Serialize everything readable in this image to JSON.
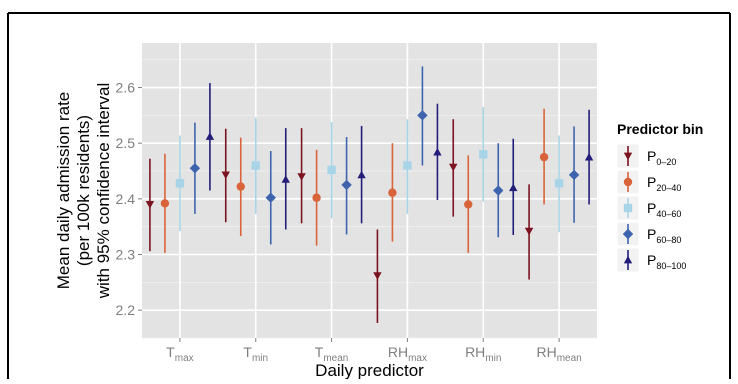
{
  "chart_data": {
    "type": "scatter",
    "xlabel": "Daily predictor",
    "ylabel_lines": [
      "Mean daily admission rate",
      "(per 100k residents)",
      "with 95% confidence interval"
    ],
    "ylim": [
      2.15,
      2.68
    ],
    "yticks": [
      2.2,
      2.3,
      2.4,
      2.5,
      2.6
    ],
    "grid": true,
    "legend_position": "right",
    "categories": [
      {
        "base": "T",
        "sub": "max"
      },
      {
        "base": "T",
        "sub": "min"
      },
      {
        "base": "T",
        "sub": "mean"
      },
      {
        "base": "RH",
        "sub": "max"
      },
      {
        "base": "RH",
        "sub": "min"
      },
      {
        "base": "RH",
        "sub": "mean"
      }
    ],
    "legend_title": "Predictor bin",
    "series": [
      {
        "label_base": "P",
        "label_sub": "0–20",
        "color": "#7b1320",
        "marker": "triangle-down",
        "values": [
          2.39,
          2.443,
          2.44,
          2.262,
          2.457,
          2.342
        ],
        "lower": [
          2.306,
          2.358,
          2.356,
          2.177,
          2.368,
          2.255
        ],
        "upper": [
          2.472,
          2.526,
          2.527,
          2.345,
          2.543,
          2.426
        ]
      },
      {
        "label_base": "P",
        "label_sub": "20–40",
        "color": "#d9643a",
        "marker": "circle",
        "values": [
          2.392,
          2.422,
          2.402,
          2.411,
          2.39,
          2.475
        ],
        "lower": [
          2.303,
          2.333,
          2.316,
          2.323,
          2.303,
          2.39
        ],
        "upper": [
          2.481,
          2.51,
          2.488,
          2.5,
          2.478,
          2.562
        ]
      },
      {
        "label_base": "P",
        "label_sub": "40–60",
        "color": "#a8d4e8",
        "marker": "square",
        "values": [
          2.428,
          2.46,
          2.452,
          2.46,
          2.48,
          2.428
        ],
        "lower": [
          2.342,
          2.373,
          2.365,
          2.373,
          2.395,
          2.34
        ],
        "upper": [
          2.514,
          2.546,
          2.538,
          2.543,
          2.565,
          2.514
        ]
      },
      {
        "label_base": "P",
        "label_sub": "60–80",
        "color": "#3e64ad",
        "marker": "diamond",
        "values": [
          2.455,
          2.402,
          2.425,
          2.55,
          2.415,
          2.443
        ],
        "lower": [
          2.373,
          2.318,
          2.336,
          2.46,
          2.331,
          2.357
        ],
        "upper": [
          2.537,
          2.486,
          2.511,
          2.638,
          2.5,
          2.53
        ]
      },
      {
        "label_base": "P",
        "label_sub": "80–100",
        "color": "#231e7a",
        "marker": "triangle-up",
        "values": [
          2.512,
          2.435,
          2.443,
          2.484,
          2.42,
          2.475
        ],
        "lower": [
          2.415,
          2.345,
          2.356,
          2.398,
          2.335,
          2.39
        ],
        "upper": [
          2.608,
          2.527,
          2.531,
          2.571,
          2.508,
          2.56
        ]
      }
    ]
  }
}
